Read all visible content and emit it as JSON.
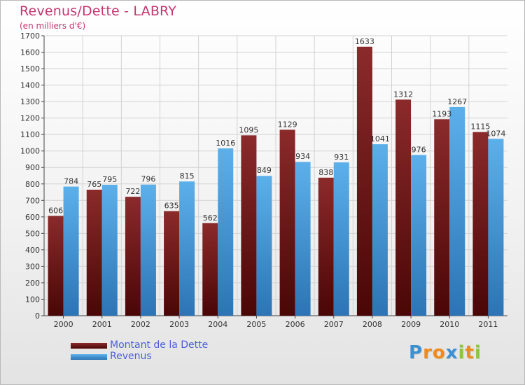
{
  "title": "Revenus/Dette - LABRY",
  "subtitle": "(en milliers d'€)",
  "colors": {
    "dette": "#8b2425",
    "dette_dark": "#4a0808",
    "revenus": "#56aae6",
    "revenus_dark": "#2f78b8",
    "title": "#c2366f",
    "legend_text": "#4a5ed6"
  },
  "logo": {
    "letters": [
      "P",
      "r",
      "o",
      "x",
      "i",
      "t",
      "i"
    ],
    "colors": [
      "#3b8fd3",
      "#f08a1c",
      "#f08a1c",
      "#3b8fd3",
      "#8cc63f",
      "#f08a1c",
      "#8cc63f"
    ]
  },
  "chart_data": {
    "type": "bar",
    "categories": [
      "2000",
      "2001",
      "2002",
      "2003",
      "2004",
      "2005",
      "2006",
      "2007",
      "2008",
      "2009",
      "2010",
      "2011"
    ],
    "series": [
      {
        "name": "Montant de la Dette",
        "values": [
          606,
          765,
          722,
          635,
          562,
          1095,
          1129,
          838,
          1633,
          1312,
          1193,
          1115
        ]
      },
      {
        "name": "Revenus",
        "values": [
          784,
          795,
          796,
          815,
          1016,
          849,
          934,
          931,
          1041,
          976,
          1267,
          1074
        ]
      }
    ],
    "title": "Revenus/Dette - LABRY",
    "ylabel": "(en milliers d'€)",
    "xlabel": "",
    "ylim": [
      0,
      1700
    ],
    "ytick_step": 100,
    "grid": true,
    "legend_position": "bottom-left"
  }
}
